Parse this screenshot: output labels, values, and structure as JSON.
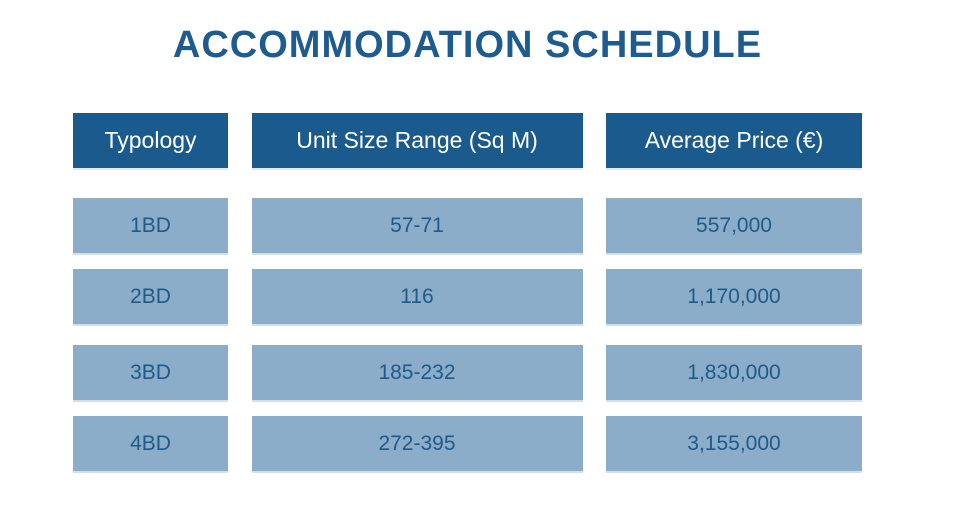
{
  "title": "ACCOMMODATION SCHEDULE",
  "chart_data": {
    "type": "table",
    "title": "ACCOMMODATION SCHEDULE",
    "columns": [
      "Typology",
      "Unit Size Range (Sq M)",
      "Average Price (€)"
    ],
    "rows": [
      [
        "1BD",
        "57-71",
        "557,000"
      ],
      [
        "2BD",
        "116",
        "1,170,000"
      ],
      [
        "3BD",
        "185-232",
        "1,830,000"
      ],
      [
        "4BD",
        "272-395",
        "3,155,000"
      ]
    ]
  },
  "colors": {
    "header_bg": "#1a5a8c",
    "header_text": "#ffffff",
    "row_bg": "#8badc9",
    "cell_text": "#1f5a88",
    "title_text": "#1e5c90",
    "page_bg": "#ffffff"
  }
}
